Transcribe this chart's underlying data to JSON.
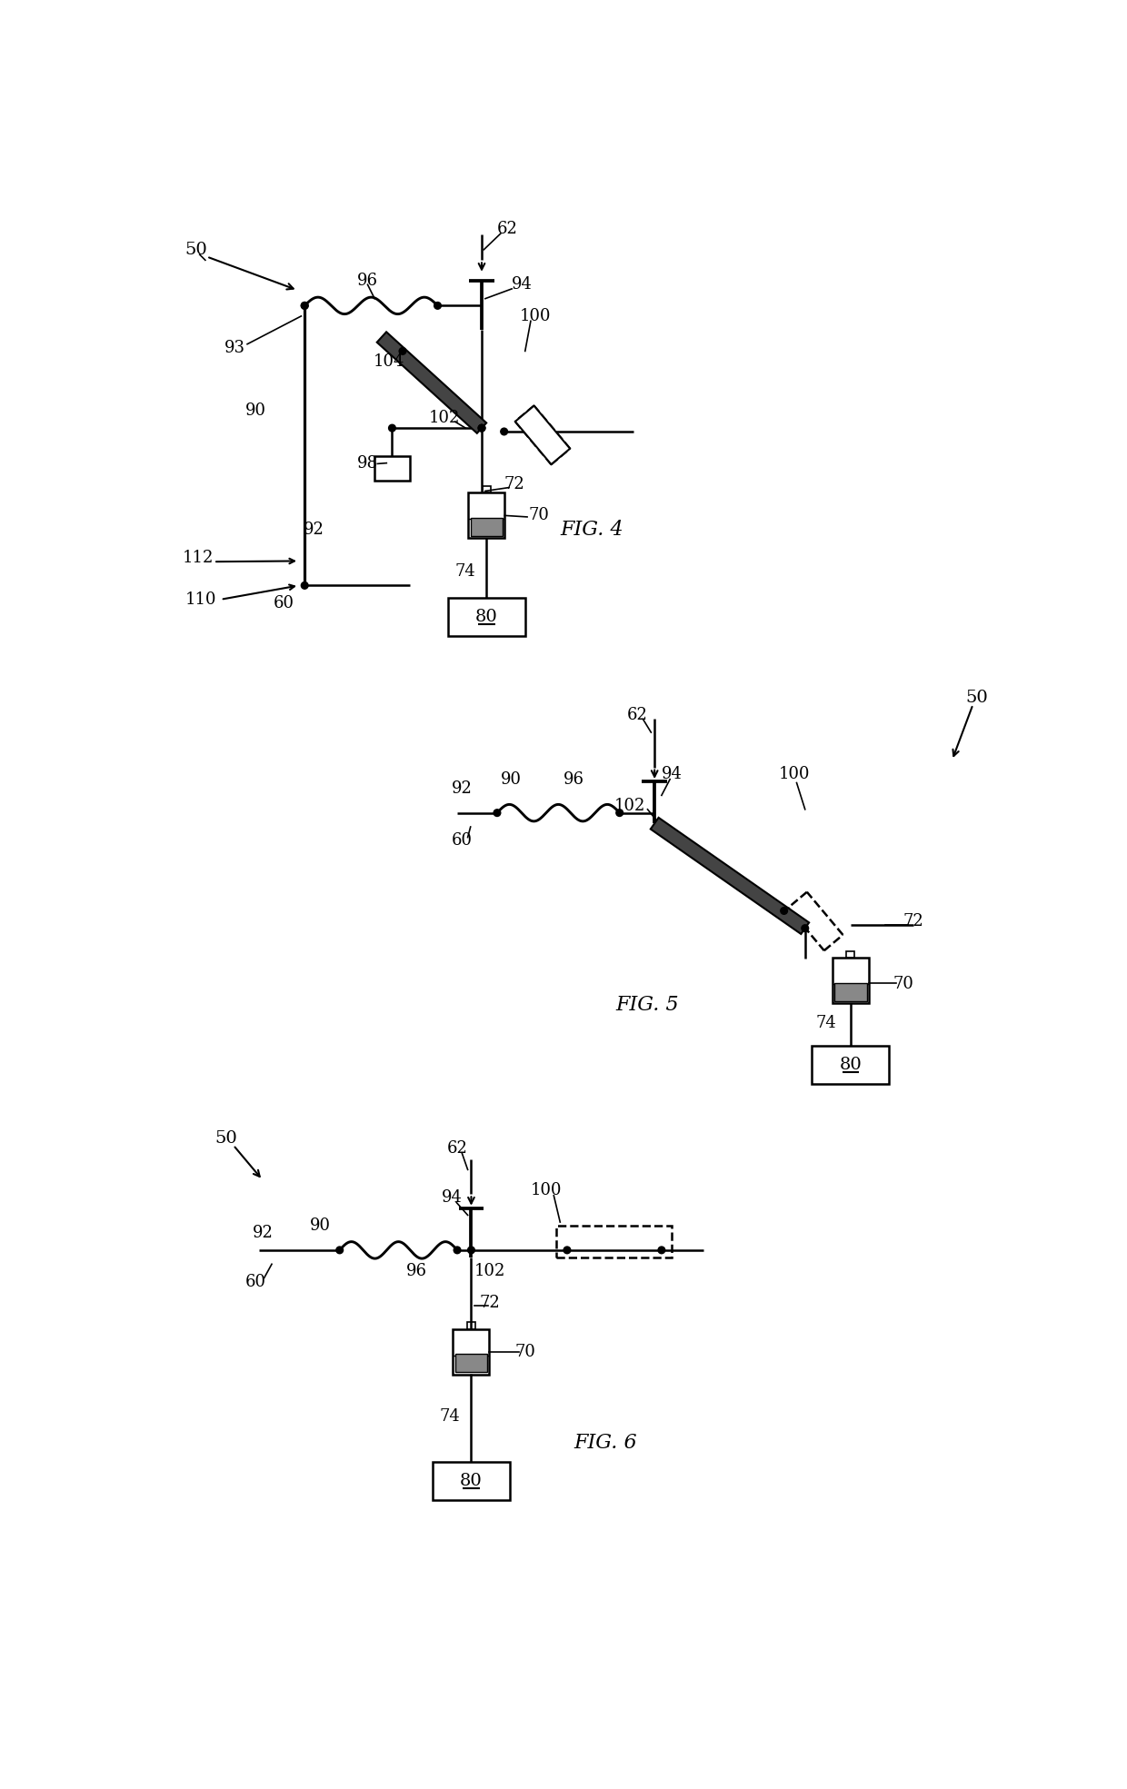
{
  "background_color": "#ffffff",
  "lw": 1.8,
  "fig_width": 12.4,
  "fig_height": 19.69,
  "fig4_label": "FIG. 4",
  "fig5_label": "FIG. 5",
  "fig6_label": "FIG. 6"
}
